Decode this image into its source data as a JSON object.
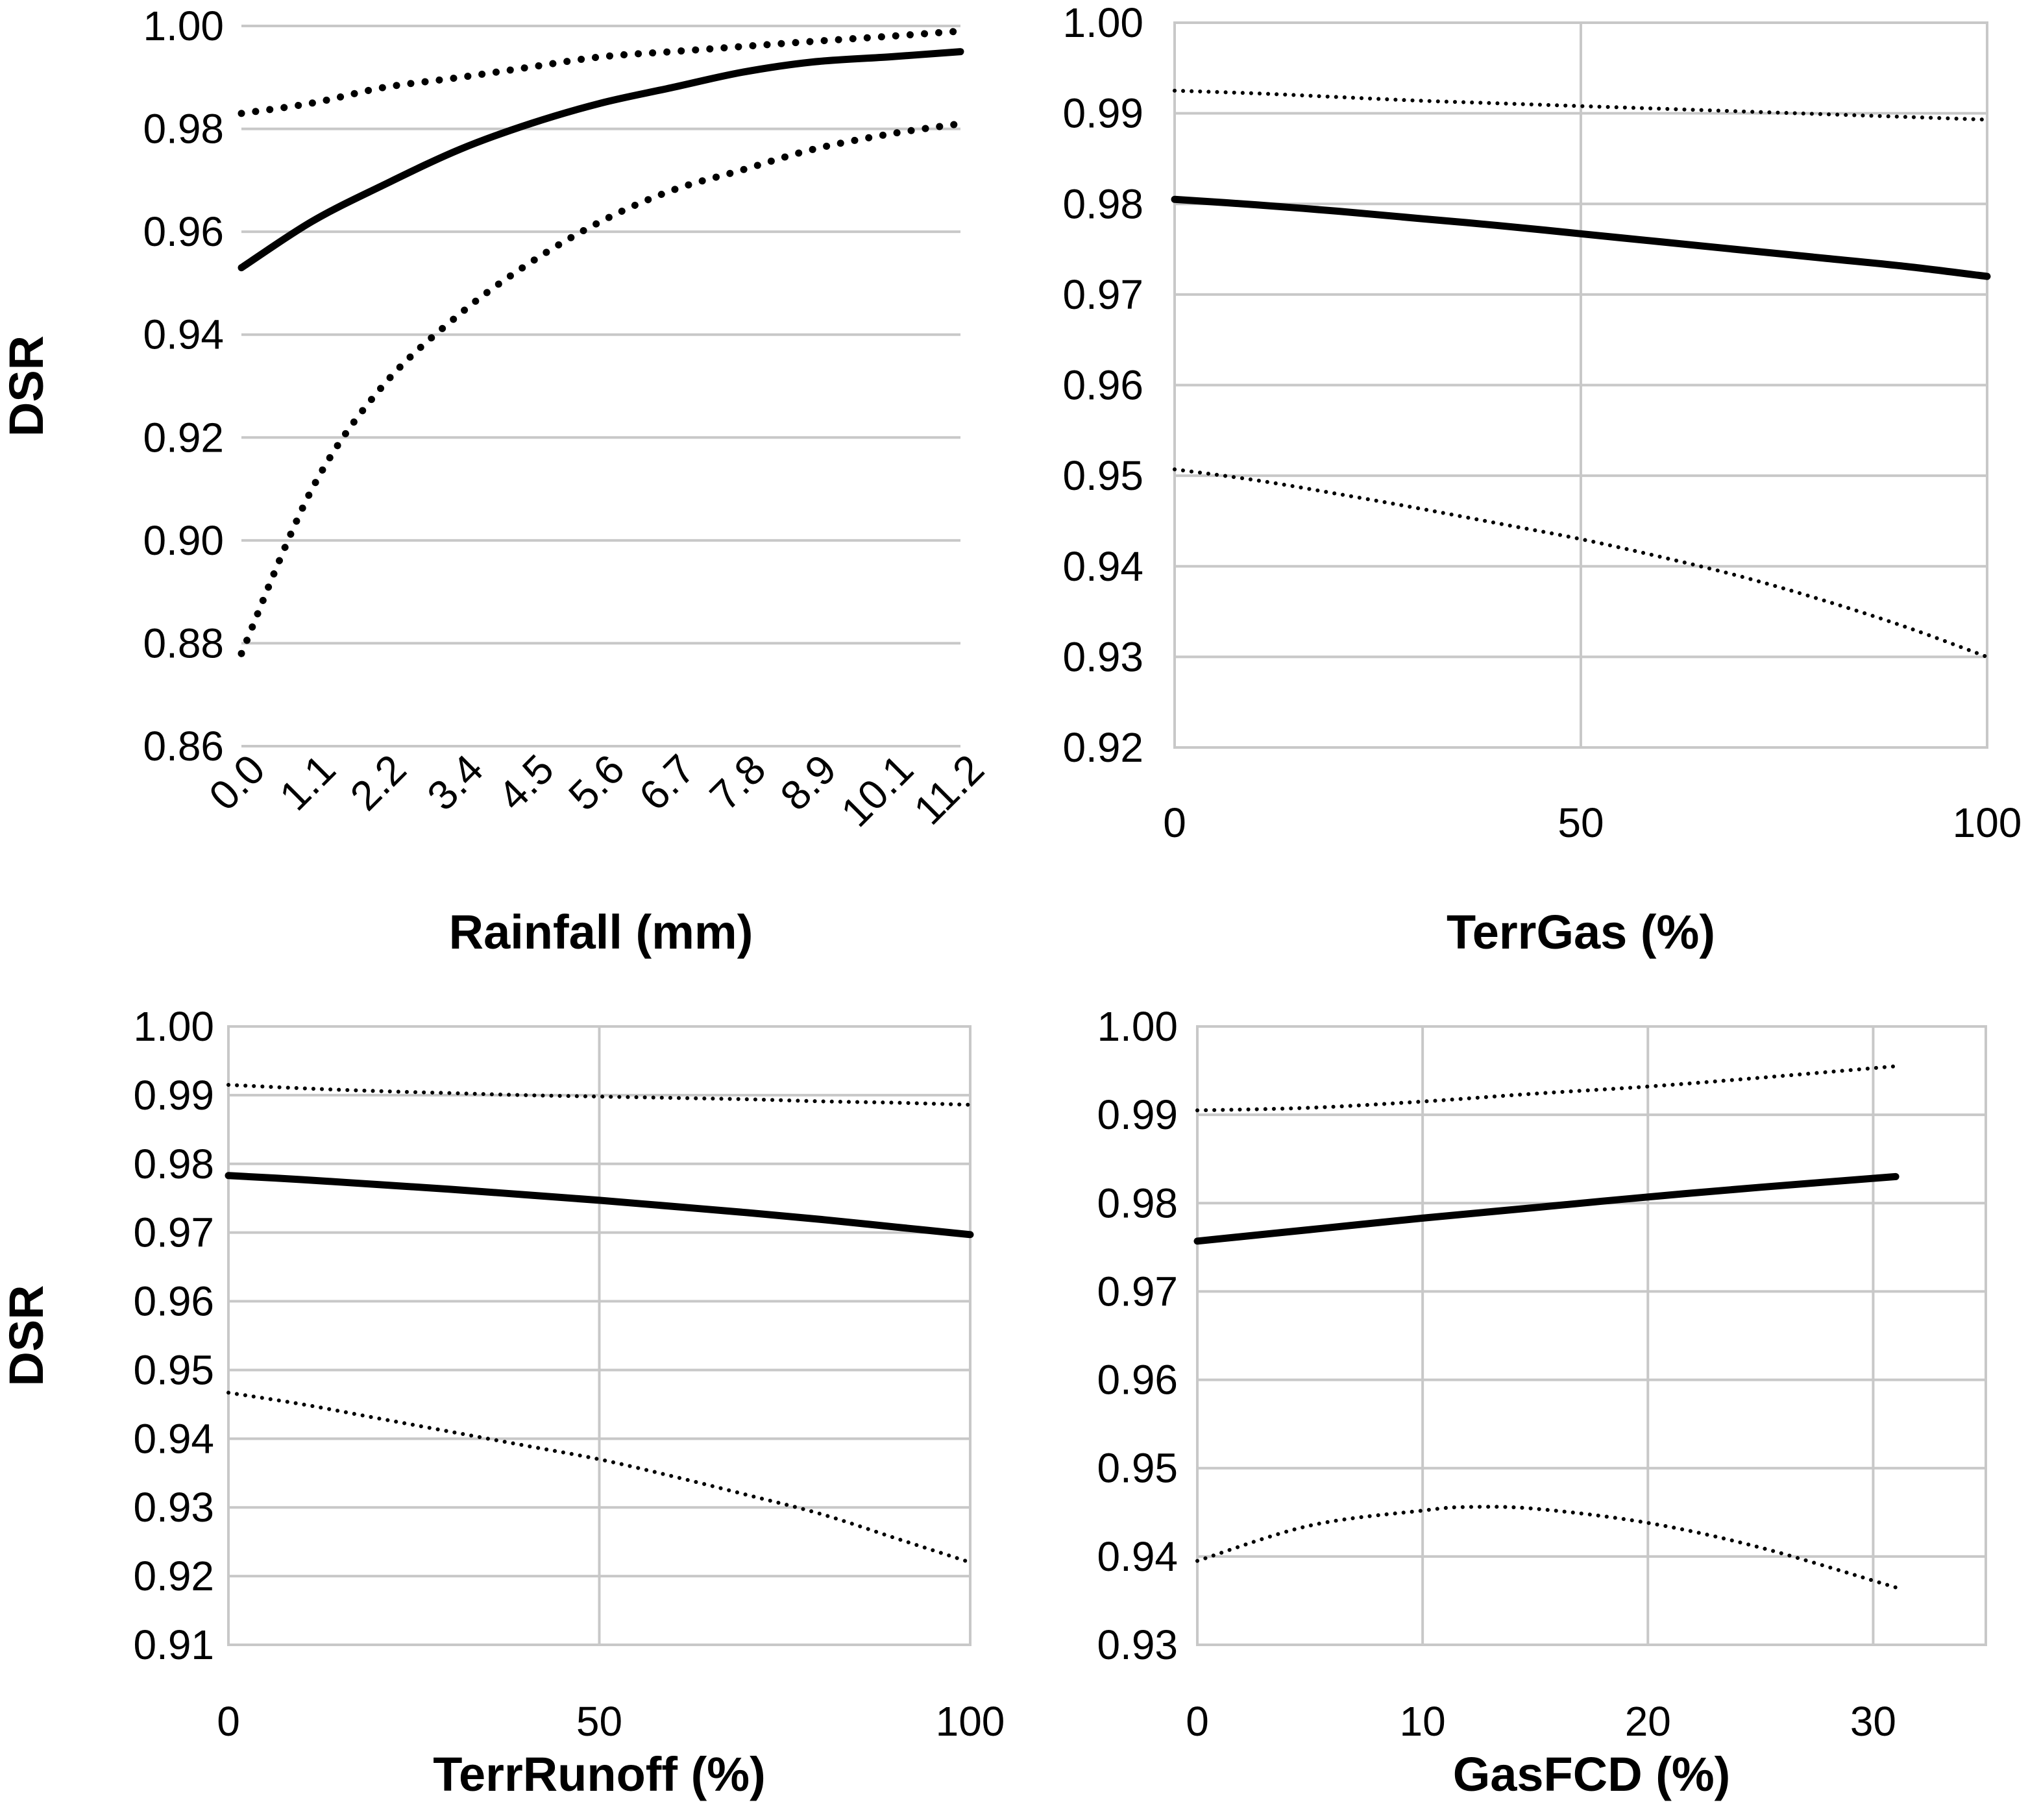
{
  "chart_data": [
    {
      "id": "rainfall",
      "type": "line",
      "xlabel": "Rainfall (mm)",
      "ylabel": "DSR",
      "x_axis_type": "category",
      "categories": [
        "0.0",
        "1.1",
        "2.2",
        "3.4",
        "4.5",
        "5.6",
        "6.7",
        "7.8",
        "8.9",
        "10.1",
        "11.2"
      ],
      "ylim": [
        0.86,
        1.0
      ],
      "y_ticks": [
        "0.86",
        "0.88",
        "0.90",
        "0.92",
        "0.94",
        "0.96",
        "0.98",
        "1.00"
      ],
      "grid": {
        "horizontal": true,
        "vertical": false
      },
      "series": [
        {
          "style": "dotted-thick",
          "x": [
            0.0,
            1.1,
            2.2,
            3.4,
            4.5,
            5.6,
            6.7,
            7.8,
            8.9,
            10.1,
            11.2
          ],
          "values": [
            0.983,
            0.985,
            0.988,
            0.99,
            0.992,
            0.994,
            0.995,
            0.996,
            0.997,
            0.998,
            0.999
          ]
        },
        {
          "style": "solid",
          "x": [
            0.0,
            1.1,
            2.2,
            3.4,
            4.5,
            5.6,
            6.7,
            7.8,
            8.9,
            10.1,
            11.2
          ],
          "values": [
            0.953,
            0.962,
            0.969,
            0.976,
            0.981,
            0.985,
            0.988,
            0.991,
            0.993,
            0.994,
            0.995
          ]
        },
        {
          "style": "dotted-thick",
          "x": [
            0.0,
            1.1,
            2.2,
            3.4,
            4.5,
            5.6,
            6.7,
            7.8,
            8.9,
            10.1,
            11.2
          ],
          "values": [
            0.878,
            0.91,
            0.93,
            0.944,
            0.954,
            0.962,
            0.968,
            0.972,
            0.976,
            0.979,
            0.981
          ]
        }
      ]
    },
    {
      "id": "terrgas",
      "type": "line",
      "xlabel": "TerrGas (%)",
      "ylabel": "",
      "xlim": [
        0,
        100
      ],
      "x_ticks": [
        "0",
        "50",
        "100"
      ],
      "ylim": [
        0.92,
        1.0
      ],
      "y_ticks": [
        "0.92",
        "0.93",
        "0.94",
        "0.95",
        "0.96",
        "0.97",
        "0.98",
        "0.99",
        "1.00"
      ],
      "grid": {
        "horizontal": true,
        "vertical": true
      },
      "series": [
        {
          "style": "dotted",
          "x": [
            0,
            10,
            20,
            30,
            40,
            50,
            60,
            70,
            80,
            90,
            100
          ],
          "values": [
            0.9925,
            0.9922,
            0.9918,
            0.9914,
            0.9911,
            0.9908,
            0.9905,
            0.9902,
            0.9899,
            0.9896,
            0.9893
          ]
        },
        {
          "style": "solid",
          "x": [
            0,
            10,
            20,
            30,
            40,
            50,
            60,
            70,
            80,
            90,
            100
          ],
          "values": [
            0.9805,
            0.9799,
            0.9792,
            0.9784,
            0.9776,
            0.9767,
            0.9758,
            0.9749,
            0.974,
            0.9731,
            0.972
          ]
        },
        {
          "style": "dotted",
          "x": [
            0,
            10,
            20,
            30,
            40,
            50,
            60,
            70,
            80,
            90,
            100
          ],
          "values": [
            0.9507,
            0.9495,
            0.948,
            0.9464,
            0.9447,
            0.943,
            0.941,
            0.9388,
            0.9362,
            0.9333,
            0.93
          ]
        }
      ]
    },
    {
      "id": "terrrunoff",
      "type": "line",
      "xlabel": "TerrRunoff (%)",
      "ylabel": "DSR",
      "xlim": [
        0,
        100
      ],
      "x_ticks": [
        "0",
        "50",
        "100"
      ],
      "ylim": [
        0.91,
        1.0
      ],
      "y_ticks": [
        "0.91",
        "0.92",
        "0.93",
        "0.94",
        "0.95",
        "0.96",
        "0.97",
        "0.98",
        "0.99",
        "1.00"
      ],
      "grid": {
        "horizontal": true,
        "vertical": true
      },
      "series": [
        {
          "style": "dotted",
          "x": [
            0,
            10,
            20,
            30,
            40,
            50,
            60,
            70,
            80,
            90,
            100
          ],
          "values": [
            0.9915,
            0.991,
            0.9906,
            0.9903,
            0.99,
            0.9898,
            0.9896,
            0.9894,
            0.9891,
            0.9889,
            0.9886
          ]
        },
        {
          "style": "solid",
          "x": [
            0,
            10,
            20,
            30,
            40,
            50,
            60,
            70,
            80,
            90,
            100
          ],
          "values": [
            0.9783,
            0.9777,
            0.977,
            0.9763,
            0.9755,
            0.9747,
            0.9738,
            0.9729,
            0.9719,
            0.9708,
            0.9697
          ]
        },
        {
          "style": "dotted",
          "x": [
            0,
            10,
            20,
            30,
            40,
            50,
            60,
            70,
            80,
            90,
            100
          ],
          "values": [
            0.9467,
            0.945,
            0.943,
            0.941,
            0.939,
            0.937,
            0.9345,
            0.9318,
            0.929,
            0.9255,
            0.922
          ]
        }
      ]
    },
    {
      "id": "gasfcd",
      "type": "line",
      "xlabel": "GasFCD (%)",
      "ylabel": "",
      "xlim": [
        0,
        35
      ],
      "x_ticks": [
        "0",
        "10",
        "20",
        "30"
      ],
      "x_tick_values": [
        0,
        10,
        20,
        30
      ],
      "ylim": [
        0.93,
        1.0
      ],
      "y_ticks": [
        "0.93",
        "0.94",
        "0.95",
        "0.96",
        "0.97",
        "0.98",
        "0.99",
        "1.00"
      ],
      "grid": {
        "horizontal": true,
        "vertical": true
      },
      "series": [
        {
          "style": "dotted",
          "x": [
            0,
            5,
            10,
            15,
            20,
            25,
            31
          ],
          "values": [
            0.9905,
            0.9908,
            0.9915,
            0.9924,
            0.9932,
            0.9942,
            0.9955
          ]
        },
        {
          "style": "solid",
          "x": [
            0,
            5,
            10,
            15,
            20,
            25,
            31
          ],
          "values": [
            0.9757,
            0.977,
            0.9783,
            0.9795,
            0.9807,
            0.9818,
            0.983
          ]
        },
        {
          "style": "dotted",
          "x": [
            0,
            5,
            10,
            12,
            15,
            20,
            25,
            31
          ],
          "values": [
            0.9395,
            0.9435,
            0.9452,
            0.9456,
            0.9454,
            0.9438,
            0.941,
            0.9365
          ]
        }
      ]
    }
  ]
}
